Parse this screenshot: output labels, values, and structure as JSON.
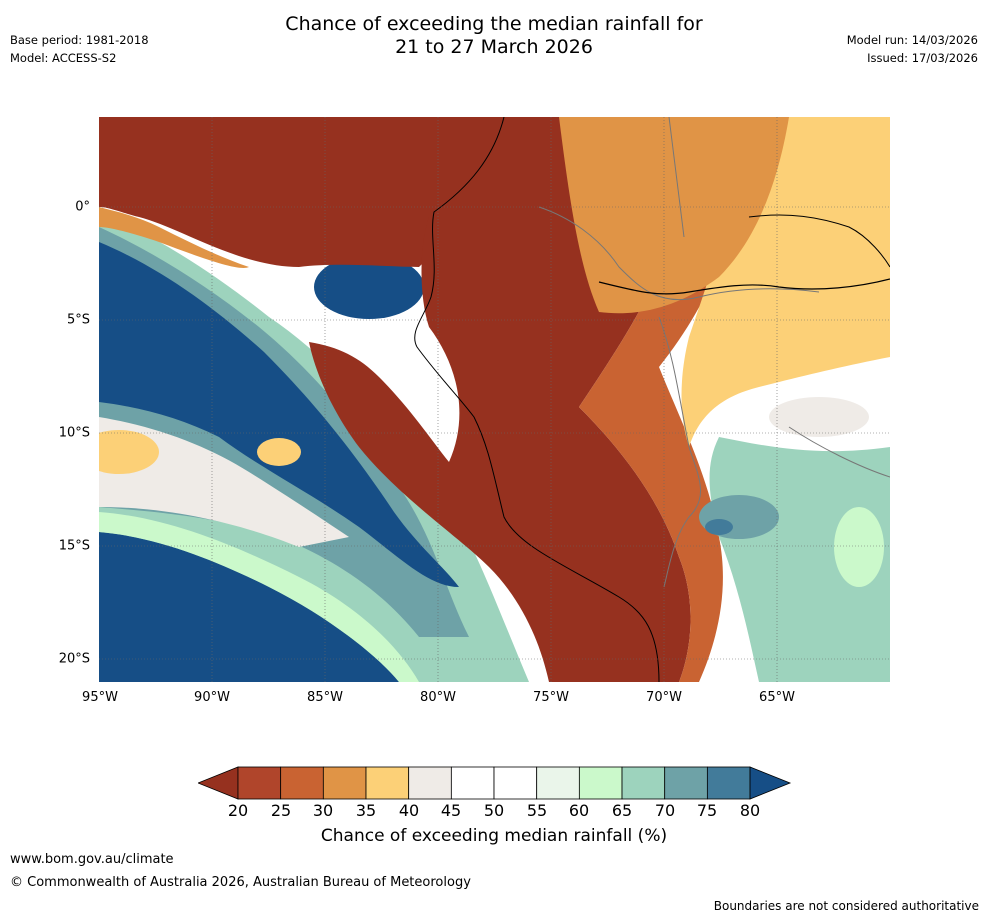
{
  "title": {
    "line1": "Chance of exceeding the median rainfall for",
    "line2": "21 to 27 March 2026"
  },
  "meta_left": {
    "base_period": "Base period: 1981-2018",
    "model": "Model: ACCESS-S2"
  },
  "meta_right": {
    "model_run": "Model run: 14/03/2026",
    "issued": "Issued: 17/03/2026"
  },
  "map": {
    "region": "Western South America and eastern Pacific",
    "lat_labels": [
      "0°",
      "5°S",
      "10°S",
      "15°S",
      "20°S"
    ],
    "lon_labels": [
      "95°W",
      "90°W",
      "85°W",
      "80°W",
      "75°W",
      "70°W",
      "65°W"
    ]
  },
  "colorbar": {
    "ticks": [
      "20",
      "25",
      "30",
      "35",
      "40",
      "45",
      "50",
      "55",
      "60",
      "65",
      "70",
      "75",
      "80"
    ],
    "colors": {
      "below20": "#96311f",
      "c20_25": "#b0452b",
      "c25_30": "#c96332",
      "c30_35": "#e09446",
      "c35_40": "#fcd077",
      "c40_45": "#efebe7",
      "c45_50": "#ffffff",
      "c50_55": "#ffffff",
      "c55_60": "#eaf5ea",
      "c60_65": "#cbf9cb",
      "c65_70": "#9dd3bd",
      "c70_75": "#6ea2a7",
      "c75_80": "#427b9a",
      "above80": "#164e86"
    },
    "label": "Chance of exceeding median rainfall (%)"
  },
  "footer": {
    "website": "www.bom.gov.au/climate",
    "copyright": "© Commonwealth of Australia 2026, Australian Bureau of Meteorology",
    "disclaimer": "Boundaries are not considered authoritative"
  }
}
